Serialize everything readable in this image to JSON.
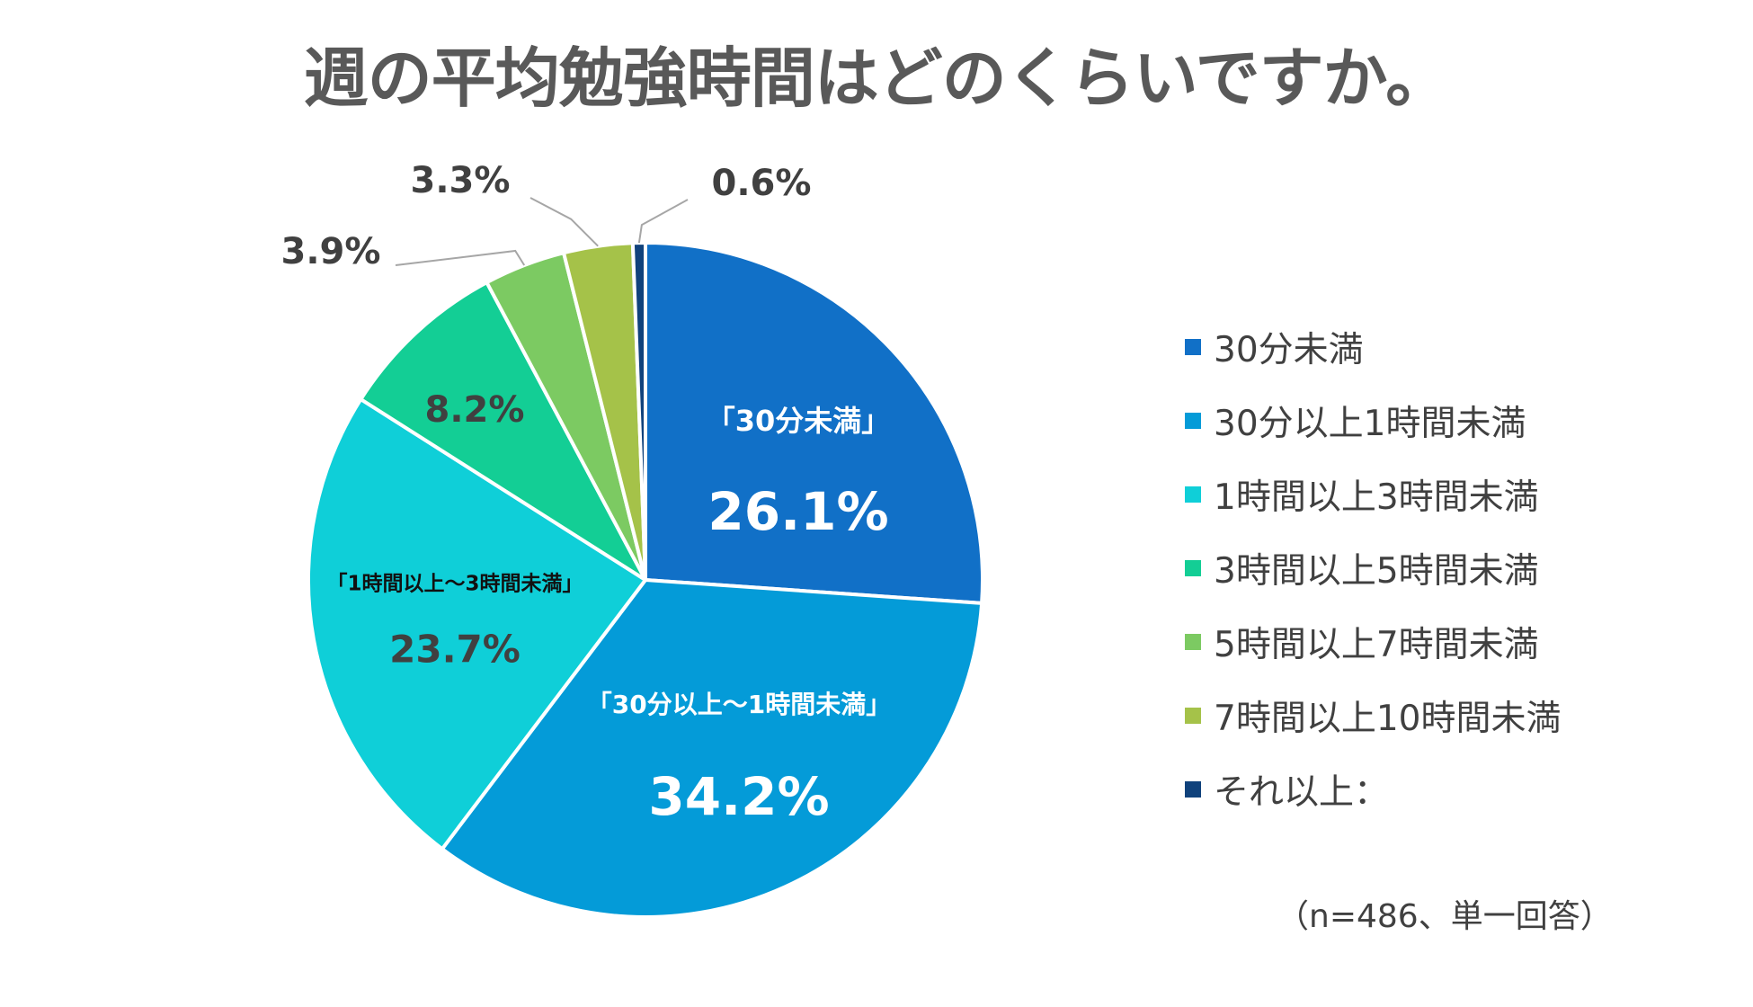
{
  "chart_data": {
    "type": "pie",
    "title": "週の平均勉強時間はどのくらいですか。",
    "slices": [
      {
        "name": "30分未満",
        "value": 26.1,
        "value_label": "26.1%",
        "callout": "「30分未満」",
        "color": "#1170C7"
      },
      {
        "name": "30分以上1時間未満",
        "value": 34.2,
        "value_label": "34.2%",
        "callout": "「30分以上～1時間未満」",
        "color": "#049BD8"
      },
      {
        "name": "1時間以上3時間未満",
        "value": 23.7,
        "value_label": "23.7%",
        "callout": "「1時間以上～3時間未満」",
        "color": "#0FCFD8"
      },
      {
        "name": "3時間以上5時間未満",
        "value": 8.2,
        "value_label": "8.2%",
        "callout": "",
        "color": "#13CE95"
      },
      {
        "name": "5時間以上7時間未満",
        "value": 3.9,
        "value_label": "3.9%",
        "callout": "",
        "color": "#7CCA62"
      },
      {
        "name": "7時間以上10時間未満",
        "value": 3.3,
        "value_label": "3.3%",
        "callout": "",
        "color": "#A5C249"
      },
      {
        "name": "それ以上：",
        "value": 0.6,
        "value_label": "0.6%",
        "callout": "",
        "color": "#10427C"
      }
    ],
    "legend_position": "right"
  },
  "note": "（n=486、単一回答）"
}
